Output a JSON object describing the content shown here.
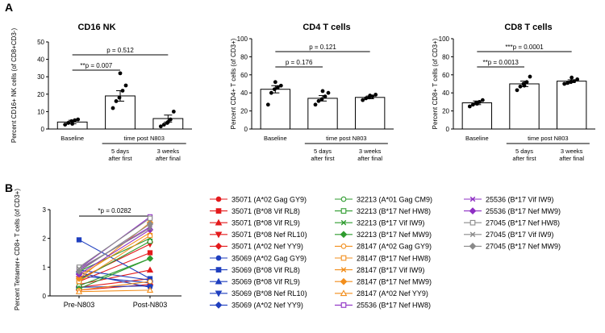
{
  "chart_data": [
    {
      "type": "bar",
      "panel": "A",
      "title": "CD16 NK",
      "ylabel": "Percent CD16+ NK cells (of CD8+CD3-)",
      "ylim": [
        0,
        50
      ],
      "yticks": [
        0,
        10,
        20,
        30,
        40,
        50
      ],
      "categories": [
        "Baseline",
        "5 days after first",
        "3 weeks after final"
      ],
      "category_labels": [
        [
          "Baseline"
        ],
        [
          "5 days",
          "after first"
        ],
        [
          "3 weeks",
          "after final"
        ]
      ],
      "group_label": "time post N803",
      "values": [
        4,
        19,
        6
      ],
      "errors": [
        1,
        3,
        2
      ],
      "points": [
        [
          2.5,
          3.5,
          4.5,
          5,
          5.5,
          3
        ],
        [
          12,
          16,
          18,
          22,
          25,
          32
        ],
        [
          1.5,
          2.5,
          3.5,
          5.5,
          10,
          4
        ]
      ],
      "comparisons": [
        {
          "label": "p = 0.512",
          "from": 0,
          "to": 2
        },
        {
          "label": "**p = 0.007",
          "from": 0,
          "to": 1
        }
      ]
    },
    {
      "type": "bar",
      "panel": "A",
      "title": "CD4 T cells",
      "ylabel": "Percent CD4+ T cells (of CD3+)",
      "ylim": [
        0,
        100
      ],
      "yticks": [
        0,
        20,
        40,
        60,
        80,
        100
      ],
      "categories": [
        "Baseline",
        "5 days after first",
        "3 weeks after final"
      ],
      "category_labels": [
        [
          "Baseline"
        ],
        [
          "5 days",
          "after first"
        ],
        [
          "3 weeks",
          "after final"
        ]
      ],
      "group_label": "time post N803",
      "values": [
        44,
        34,
        35
      ],
      "errors": [
        4,
        3,
        1.5
      ],
      "points": [
        [
          27,
          40,
          44,
          46,
          48,
          52
        ],
        [
          27,
          31,
          33,
          36,
          40,
          42
        ],
        [
          32,
          34,
          35,
          36,
          38,
          37
        ]
      ],
      "comparisons": [
        {
          "label": "p = 0.121",
          "from": 0,
          "to": 2
        },
        {
          "label": "p = 0.176",
          "from": 0,
          "to": 1
        }
      ]
    },
    {
      "type": "bar",
      "panel": "A",
      "title": "CD8 T cells",
      "ylabel": "Percent CD8+ T cells (of CD3+)",
      "ylim": [
        0,
        100
      ],
      "yticks": [
        0,
        20,
        40,
        60,
        80,
        100
      ],
      "categories": [
        "Baseline",
        "5 days after first",
        "3 weeks after final"
      ],
      "category_labels": [
        [
          "Baseline"
        ],
        [
          "5 days",
          "after first"
        ],
        [
          "3 weeks",
          "after final"
        ]
      ],
      "group_label": "time post N803",
      "values": [
        29,
        50,
        53
      ],
      "errors": [
        2,
        3,
        1.5
      ],
      "points": [
        [
          25,
          27,
          29,
          30,
          32,
          28
        ],
        [
          43,
          47,
          50,
          52,
          58,
          48
        ],
        [
          50,
          51,
          52,
          53,
          55,
          57
        ]
      ],
      "comparisons": [
        {
          "label": "***p = 0.0001",
          "from": 0,
          "to": 2
        },
        {
          "label": "**p = 0.0013",
          "from": 0,
          "to": 1
        }
      ]
    },
    {
      "type": "line",
      "panel": "B",
      "ylabel": "Percent Tetramer+ CD8+ T cells (of CD3+)",
      "ylim": [
        0,
        3
      ],
      "yticks": [
        0,
        1,
        2,
        3
      ],
      "categories": [
        "Pre-N803",
        "Post-N803"
      ],
      "comparison": {
        "label": "*p = 0.0282",
        "from": 0,
        "to": 1
      },
      "series": [
        {
          "name": "35071 (A*02 Gag GY9)",
          "color": "#e41a1c",
          "marker": "circle",
          "filled": true,
          "values": [
            0.3,
            0.6
          ]
        },
        {
          "name": "35071 (B*08 Vif RL8)",
          "color": "#e41a1c",
          "marker": "square",
          "filled": true,
          "values": [
            0.5,
            1.5
          ]
        },
        {
          "name": "35071 (B*08 Vif RL9)",
          "color": "#e41a1c",
          "marker": "triangle-up",
          "filled": true,
          "values": [
            0.4,
            0.9
          ]
        },
        {
          "name": "35071 (B*08 Nef RL10)",
          "color": "#e41a1c",
          "marker": "triangle-down",
          "filled": true,
          "values": [
            0.6,
            1.8
          ]
        },
        {
          "name": "35071 (A*02 Nef YY9)",
          "color": "#e41a1c",
          "marker": "diamond",
          "filled": true,
          "values": [
            0.2,
            0.4
          ]
        },
        {
          "name": "35069 (A*02 Gag GY9)",
          "color": "#1f3fbf",
          "marker": "circle",
          "filled": true,
          "values": [
            0.8,
            0.3
          ]
        },
        {
          "name": "35069 (B*08 Vif RL8)",
          "color": "#1f3fbf",
          "marker": "square",
          "filled": true,
          "values": [
            1.95,
            0.6
          ]
        },
        {
          "name": "35069 (B*08 Vif RL9)",
          "color": "#1f3fbf",
          "marker": "triangle-up",
          "filled": true,
          "values": [
            0.9,
            0.55
          ]
        },
        {
          "name": "35069 (B*08 Nef RL10)",
          "color": "#1f3fbf",
          "marker": "triangle-down",
          "filled": true,
          "values": [
            0.7,
            0.45
          ]
        },
        {
          "name": "35069 (A*02 Nef YY9)",
          "color": "#1f3fbf",
          "marker": "diamond",
          "filled": true,
          "values": [
            0.3,
            0.35
          ]
        },
        {
          "name": "32213 (A*01 Gag CM9)",
          "color": "#2e9b2e",
          "marker": "circle",
          "filled": false,
          "values": [
            0.35,
            1.3
          ]
        },
        {
          "name": "32213 (B*17 Nef HW8)",
          "color": "#2e9b2e",
          "marker": "square",
          "filled": false,
          "values": [
            0.55,
            1.9
          ]
        },
        {
          "name": "32213 (B*17 Vif IW9)",
          "color": "#2e9b2e",
          "marker": "x",
          "filled": false,
          "values": [
            0.85,
            2.0
          ]
        },
        {
          "name": "32213 (B*17 Nef MW9)",
          "color": "#2e9b2e",
          "marker": "diamond",
          "filled": true,
          "values": [
            0.25,
            1.3
          ]
        },
        {
          "name": "28147 (A*02 Gag GY9)",
          "color": "#f28e1c",
          "marker": "circle",
          "filled": false,
          "values": [
            0.2,
            0.5
          ]
        },
        {
          "name": "28147 (B*17 Nef HW8)",
          "color": "#f28e1c",
          "marker": "square",
          "filled": false,
          "values": [
            0.5,
            2.1
          ]
        },
        {
          "name": "28147 (B*17 Vif IW9)",
          "color": "#f28e1c",
          "marker": "x",
          "filled": false,
          "values": [
            0.7,
            2.2
          ]
        },
        {
          "name": "28147 (B*17 Nef MW9)",
          "color": "#f28e1c",
          "marker": "diamond",
          "filled": true,
          "values": [
            0.6,
            2.55
          ]
        },
        {
          "name": "28147 (A*02 Nef YY9)",
          "color": "#f28e1c",
          "marker": "triangle-up",
          "filled": false,
          "values": [
            0.15,
            0.2
          ]
        },
        {
          "name": "25536 (B*17 Nef HW8)",
          "color": "#8e2fc4",
          "marker": "square",
          "filled": false,
          "values": [
            0.95,
            2.75
          ]
        },
        {
          "name": "25536 (B*17 Vif IW9)",
          "color": "#8e2fc4",
          "marker": "x",
          "filled": false,
          "values": [
            0.9,
            2.4
          ]
        },
        {
          "name": "25536 (B*17 Nef MW9)",
          "color": "#8e2fc4",
          "marker": "diamond",
          "filled": true,
          "values": [
            0.75,
            2.3
          ]
        },
        {
          "name": "27045 (B*17 Nef HW8)",
          "color": "#8a8a8a",
          "marker": "square",
          "filled": false,
          "values": [
            1.0,
            2.7
          ]
        },
        {
          "name": "27045 (B*17 Vif IW9)",
          "color": "#8a8a8a",
          "marker": "x",
          "filled": false,
          "values": [
            0.95,
            2.35
          ]
        },
        {
          "name": "27045 (B*17 Nef MW9)",
          "color": "#8a8a8a",
          "marker": "diamond",
          "filled": true,
          "values": [
            0.85,
            2.5
          ]
        }
      ]
    }
  ],
  "panel_labels": [
    "A",
    "B"
  ]
}
